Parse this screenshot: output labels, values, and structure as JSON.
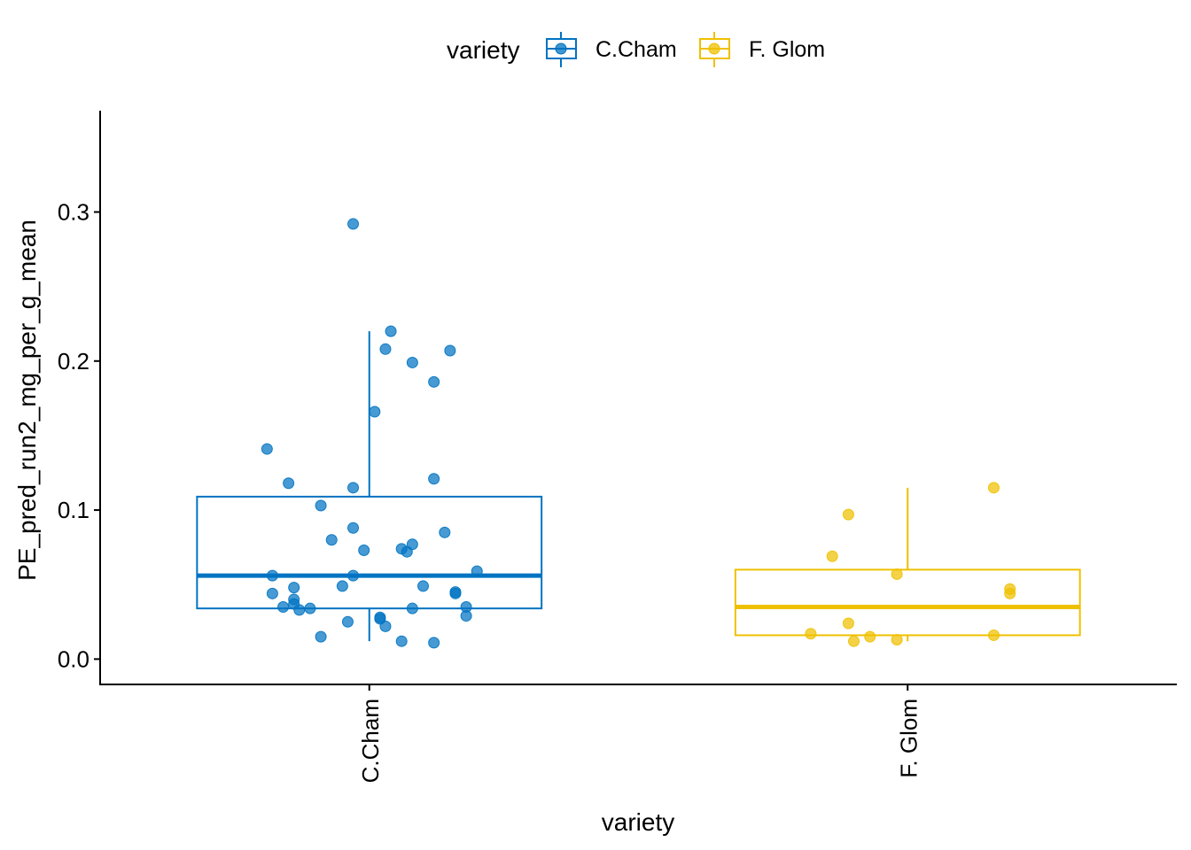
{
  "chart_data": {
    "type": "boxplot",
    "xlabel": "variety",
    "ylabel": "PE_pred_run2_mg_per_g_mean",
    "ylim": [
      -0.017,
      0.368
    ],
    "y_ticks": [
      "0.0",
      "0.1",
      "0.2",
      "0.3"
    ],
    "y_tick_values": [
      0.0,
      0.1,
      0.2,
      0.3
    ],
    "categories": [
      "C.Cham",
      "F. Glom"
    ],
    "legend": {
      "title": "variety",
      "position": "top",
      "entries": [
        "C.Cham",
        "F. Glom"
      ]
    },
    "series": [
      {
        "name": "C.Cham",
        "color": "#0073C2",
        "box": {
          "whisker_low": 0.012,
          "q1": 0.034,
          "median": 0.056,
          "q3": 0.109,
          "whisker_high": 0.22
        },
        "points": [
          [
            -0.03,
            0.292
          ],
          [
            0.04,
            0.22
          ],
          [
            0.03,
            0.208
          ],
          [
            0.15,
            0.207
          ],
          [
            0.08,
            0.199
          ],
          [
            0.12,
            0.186
          ],
          [
            0.01,
            0.166
          ],
          [
            -0.19,
            0.141
          ],
          [
            0.12,
            0.121
          ],
          [
            -0.15,
            0.118
          ],
          [
            -0.03,
            0.115
          ],
          [
            -0.09,
            0.103
          ],
          [
            -0.03,
            0.088
          ],
          [
            0.14,
            0.085
          ],
          [
            -0.07,
            0.08
          ],
          [
            0.08,
            0.077
          ],
          [
            0.06,
            0.074
          ],
          [
            0.07,
            0.072
          ],
          [
            -0.01,
            0.073
          ],
          [
            0.2,
            0.059
          ],
          [
            -0.18,
            0.056
          ],
          [
            -0.03,
            0.056
          ],
          [
            -0.14,
            0.048
          ],
          [
            -0.05,
            0.049
          ],
          [
            0.1,
            0.049
          ],
          [
            0.16,
            0.045
          ],
          [
            0.16,
            0.044
          ],
          [
            -0.18,
            0.044
          ],
          [
            -0.14,
            0.04
          ],
          [
            -0.14,
            0.037
          ],
          [
            -0.16,
            0.035
          ],
          [
            -0.11,
            0.034
          ],
          [
            0.08,
            0.034
          ],
          [
            -0.13,
            0.033
          ],
          [
            0.18,
            0.035
          ],
          [
            0.18,
            0.029
          ],
          [
            0.02,
            0.028
          ],
          [
            0.02,
            0.027
          ],
          [
            -0.04,
            0.025
          ],
          [
            0.03,
            0.022
          ],
          [
            -0.09,
            0.015
          ],
          [
            0.06,
            0.012
          ],
          [
            0.12,
            0.011
          ]
        ]
      },
      {
        "name": "F. Glom",
        "color": "#EFC000",
        "box": {
          "whisker_low": 0.012,
          "q1": 0.016,
          "median": 0.035,
          "q3": 0.06,
          "whisker_high": 0.115
        },
        "points": [
          [
            0.16,
            0.115
          ],
          [
            -0.11,
            0.097
          ],
          [
            -0.14,
            0.069
          ],
          [
            -0.02,
            0.057
          ],
          [
            0.19,
            0.047
          ],
          [
            0.19,
            0.044
          ],
          [
            -0.11,
            0.024
          ],
          [
            -0.18,
            0.017
          ],
          [
            0.16,
            0.016
          ],
          [
            -0.07,
            0.015
          ],
          [
            -0.02,
            0.013
          ],
          [
            -0.1,
            0.012
          ]
        ]
      }
    ]
  }
}
